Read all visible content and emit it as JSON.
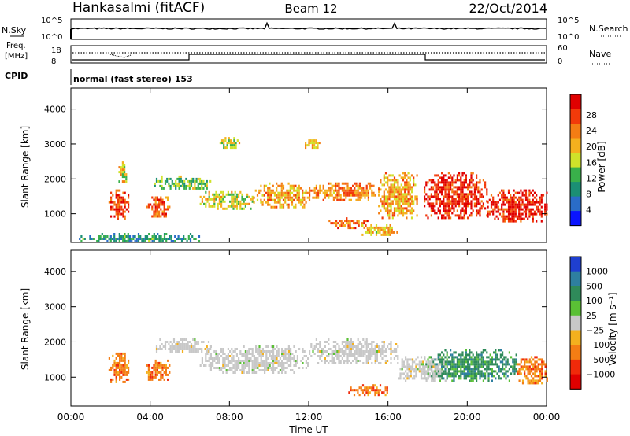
{
  "header": {
    "station": "Hankasalmi (fitACF)",
    "beam": "Beam 12",
    "date": "22/Oct/2014"
  },
  "noise_panel": {
    "left_label": "N.Sky",
    "right_label": "N.Search",
    "ticks_left": [
      "10^5",
      "10^0"
    ],
    "ticks_right": [
      "10^5",
      "10^0"
    ]
  },
  "freq_panel": {
    "left_label_1": "Freq.",
    "left_label_2": "[MHz]",
    "left_ticks": [
      "18",
      "8"
    ],
    "right_label": "Nave",
    "right_ticks": [
      "60",
      "0"
    ]
  },
  "cpid_panel": {
    "label": "CPID",
    "mode_text": "normal (fast stereo) 153"
  },
  "chart_data": [
    {
      "type": "heatmap",
      "quantity": "Power",
      "ylabel": "Slant Range [km]",
      "xlabel": "",
      "x_ticks": [
        "00:00",
        "04:00",
        "08:00",
        "12:00",
        "16:00",
        "20:00",
        "00:00"
      ],
      "xlim_hours": [
        0,
        24
      ],
      "ylim_km": [
        180,
        4600
      ],
      "y_ticks": [
        1000,
        2000,
        3000,
        4000
      ],
      "colorbar": {
        "label": "Power [dB]",
        "range": [
          0,
          30
        ],
        "ticks": [
          "4",
          "8",
          "12",
          "16",
          "20",
          "24",
          "28"
        ],
        "colors": [
          "#0a14ff",
          "#2a6cc8",
          "#1b8f74",
          "#39b04a",
          "#cfe22a",
          "#f4b01e",
          "#f47d14",
          "#f23a0a",
          "#e00000"
        ]
      },
      "echo_regions": [
        {
          "t": [
            1.9,
            2.9
          ],
          "r": [
            850,
            1700
          ],
          "level": 28
        },
        {
          "t": [
            2.4,
            2.8
          ],
          "r": [
            1900,
            2500
          ],
          "level": 18
        },
        {
          "t": [
            3.8,
            5.0
          ],
          "r": [
            900,
            1500
          ],
          "level": 27
        },
        {
          "t": [
            4.2,
            7.0
          ],
          "r": [
            1700,
            2100
          ],
          "level": 14
        },
        {
          "t": [
            6.5,
            9.2
          ],
          "r": [
            1150,
            1650
          ],
          "level": 18
        },
        {
          "t": [
            9.2,
            12.0
          ],
          "r": [
            1200,
            1900
          ],
          "level": 22
        },
        {
          "t": [
            12.0,
            15.5
          ],
          "r": [
            1400,
            1900
          ],
          "level": 24
        },
        {
          "t": [
            15.5,
            17.5
          ],
          "r": [
            900,
            2200
          ],
          "level": 22
        },
        {
          "t": [
            13.0,
            15.0
          ],
          "r": [
            600,
            900
          ],
          "level": 26
        },
        {
          "t": [
            14.5,
            16.5
          ],
          "r": [
            400,
            700
          ],
          "level": 20
        },
        {
          "t": [
            17.8,
            21.0
          ],
          "r": [
            850,
            2200
          ],
          "level": 30
        },
        {
          "t": [
            21.0,
            24.0
          ],
          "r": [
            800,
            1700
          ],
          "level": 30
        },
        {
          "t": [
            7.5,
            8.5
          ],
          "r": [
            2900,
            3200
          ],
          "level": 18
        },
        {
          "t": [
            11.8,
            12.5
          ],
          "r": [
            2900,
            3200
          ],
          "level": 20
        },
        {
          "t": [
            0.4,
            6.5
          ],
          "r": [
            200,
            450
          ],
          "level": 10
        }
      ]
    },
    {
      "type": "heatmap",
      "quantity": "Velocity",
      "ylabel": "Slant Range [km]",
      "xlabel": "Time UT",
      "x_ticks": [
        "00:00",
        "04:00",
        "08:00",
        "12:00",
        "16:00",
        "20:00",
        "00:00"
      ],
      "xlim_hours": [
        0,
        24
      ],
      "ylim_km": [
        180,
        4600
      ],
      "y_ticks": [
        1000,
        2000,
        3000,
        4000
      ],
      "colorbar": {
        "label": "Velocity [m s⁻¹]",
        "ticks": [
          "1000",
          "500",
          "100",
          "25",
          "−25",
          "−100",
          "−500",
          "−1000"
        ],
        "colors": [
          "#1f3fd0",
          "#2e7fa0",
          "#2f8a5a",
          "#5ac035",
          "#c8c8c8",
          "#f4b01e",
          "#f47d14",
          "#f02a0a",
          "#e00000"
        ]
      },
      "echo_regions": [
        {
          "t": [
            1.9,
            2.9
          ],
          "r": [
            850,
            1700
          ],
          "level": -100
        },
        {
          "t": [
            3.8,
            5.0
          ],
          "r": [
            900,
            1500
          ],
          "level": -100
        },
        {
          "t": [
            4.2,
            7.0
          ],
          "r": [
            1700,
            2100
          ],
          "level": 0
        },
        {
          "t": [
            6.5,
            12.0
          ],
          "r": [
            1150,
            1900
          ],
          "level": 0
        },
        {
          "t": [
            12.0,
            16.5
          ],
          "r": [
            1400,
            2100
          ],
          "level": 0
        },
        {
          "t": [
            14.0,
            16.0
          ],
          "r": [
            500,
            800
          ],
          "level": -100
        },
        {
          "t": [
            17.8,
            22.5
          ],
          "r": [
            900,
            1800
          ],
          "level": 300
        },
        {
          "t": [
            22.5,
            24.0
          ],
          "r": [
            800,
            1600
          ],
          "level": -100
        },
        {
          "t": [
            16.5,
            19.0
          ],
          "r": [
            900,
            1600
          ],
          "level": 0
        }
      ]
    }
  ]
}
